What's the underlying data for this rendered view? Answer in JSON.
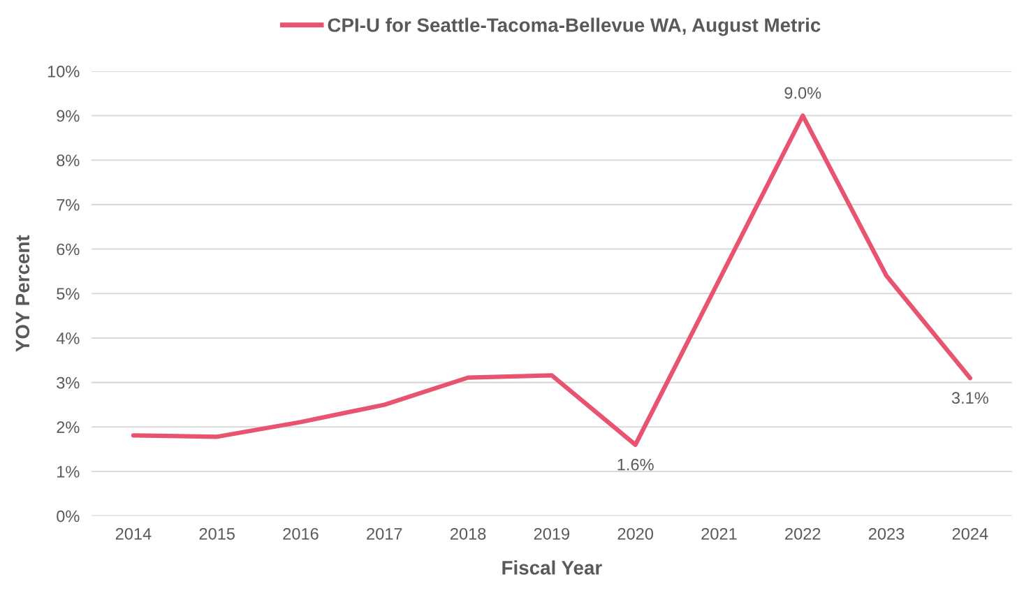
{
  "chart_data": {
    "type": "line",
    "xlabel": "Fiscal Year",
    "ylabel": "YOY Percent",
    "categories": [
      "2014",
      "2015",
      "2016",
      "2017",
      "2018",
      "2019",
      "2020",
      "2021",
      "2022",
      "2023",
      "2024"
    ],
    "series": [
      {
        "name": "CPI-U for Seattle-Tacoma-Bellevue WA, August Metric",
        "color": "#e8546f",
        "values": [
          1.81,
          1.78,
          2.11,
          2.5,
          3.11,
          3.16,
          1.6,
          5.3,
          9.0,
          5.4,
          3.1
        ],
        "value_labels": [
          null,
          null,
          null,
          null,
          null,
          null,
          "1.6%",
          null,
          "9.0%",
          null,
          "3.1%"
        ]
      }
    ],
    "ylim": [
      0,
      10
    ],
    "yticks": [
      {
        "value": 0,
        "label": "0%"
      },
      {
        "value": 1,
        "label": "1%"
      },
      {
        "value": 2,
        "label": "2%"
      },
      {
        "value": 3,
        "label": "3%"
      },
      {
        "value": 4,
        "label": "4%"
      },
      {
        "value": 5,
        "label": "5%"
      },
      {
        "value": 6,
        "label": "6%"
      },
      {
        "value": 7,
        "label": "7%"
      },
      {
        "value": 8,
        "label": "8%"
      },
      {
        "value": 9,
        "label": "9%"
      },
      {
        "value": 10,
        "label": "10%"
      }
    ],
    "grid": "y",
    "legend": "top",
    "marker": "none",
    "line_style": "solid"
  }
}
